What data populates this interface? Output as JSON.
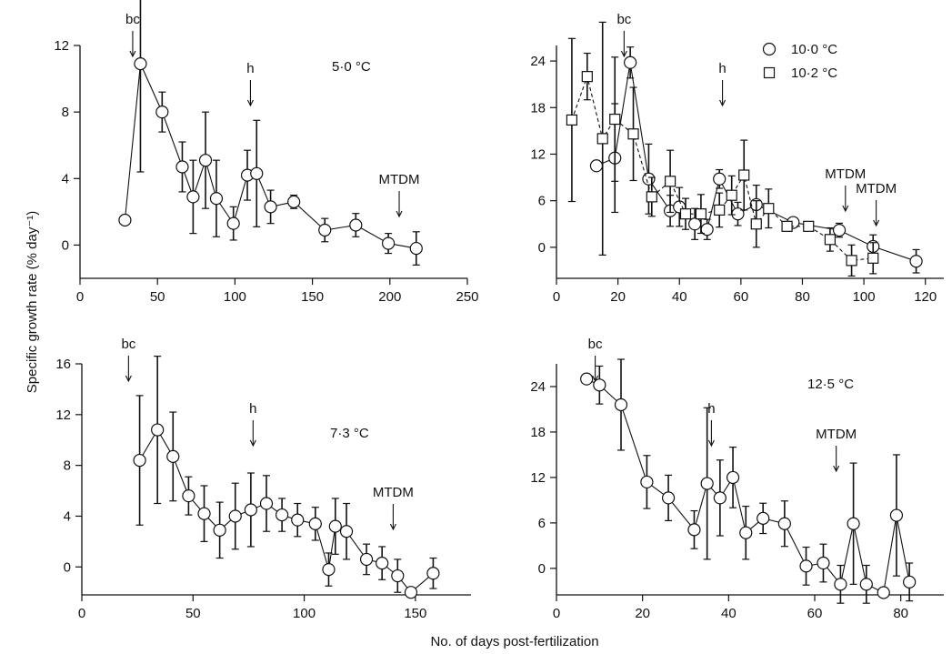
{
  "figure": {
    "ylabel": "Specific growth rate (% day⁻¹)",
    "xlabel": "No. of days post-fertilization"
  },
  "chart_data": [
    {
      "type": "scatter",
      "panel": "top-left",
      "annotation": "5·0 °C",
      "xlim": [
        0,
        250
      ],
      "ylim": [
        -2,
        12
      ],
      "xticks": [
        0,
        50,
        100,
        150,
        200,
        250
      ],
      "yticks": [
        0,
        4,
        8,
        12
      ],
      "series": [
        {
          "marker": "circle",
          "line": "solid",
          "points": [
            {
              "x": 29,
              "y": 1.5,
              "err": 0
            },
            {
              "x": 39,
              "y": 10.9,
              "err": 6.5
            },
            {
              "x": 53,
              "y": 8.0,
              "err": 1.2
            },
            {
              "x": 66,
              "y": 4.7,
              "err": 1.5
            },
            {
              "x": 73,
              "y": 2.9,
              "err": 2.2
            },
            {
              "x": 81,
              "y": 5.1,
              "err": 2.9
            },
            {
              "x": 88,
              "y": 2.8,
              "err": 2.3
            },
            {
              "x": 99,
              "y": 1.3,
              "err": 1.0
            },
            {
              "x": 108,
              "y": 4.2,
              "err": 1.5
            },
            {
              "x": 114,
              "y": 4.3,
              "err": 3.2
            },
            {
              "x": 123,
              "y": 2.3,
              "err": 1.0
            },
            {
              "x": 138,
              "y": 2.6,
              "err": 0.4
            },
            {
              "x": 158,
              "y": 0.9,
              "err": 0.7
            },
            {
              "x": 178,
              "y": 1.2,
              "err": 0.7
            },
            {
              "x": 199,
              "y": 0.1,
              "err": 0.6
            },
            {
              "x": 217,
              "y": -0.2,
              "err": 1.0
            }
          ]
        }
      ],
      "markers": [
        {
          "label": "bc",
          "x": 34
        },
        {
          "label": "h",
          "x": 110
        },
        {
          "label": "MTDM",
          "x": 206
        }
      ]
    },
    {
      "type": "scatter",
      "panel": "top-right",
      "annotation": "",
      "xlim": [
        0,
        126
      ],
      "ylim": [
        -4,
        26
      ],
      "xticks": [
        0,
        20,
        40,
        60,
        80,
        100,
        120
      ],
      "yticks": [
        0,
        6,
        12,
        18,
        24
      ],
      "legend": "top-right",
      "series": [
        {
          "name": "10·0 °C",
          "marker": "circle",
          "line": "solid",
          "points": [
            {
              "x": 13,
              "y": 10.5,
              "err": 0
            },
            {
              "x": 19,
              "y": 11.5,
              "err": 7
            },
            {
              "x": 24,
              "y": 23.8,
              "err": 2
            },
            {
              "x": 30,
              "y": 8.8,
              "err": 4.5
            },
            {
              "x": 37,
              "y": 4.7,
              "err": 2
            },
            {
              "x": 40,
              "y": 5.2,
              "err": 2.5
            },
            {
              "x": 45,
              "y": 3.0,
              "err": 2
            },
            {
              "x": 49,
              "y": 2.3,
              "err": 1.3
            },
            {
              "x": 53,
              "y": 8.8,
              "err": 1.2
            },
            {
              "x": 59,
              "y": 4.3,
              "err": 1.5
            },
            {
              "x": 65,
              "y": 5.5,
              "err": 2.5
            },
            {
              "x": 77,
              "y": 3.2,
              "err": 0.4
            },
            {
              "x": 92,
              "y": 2.2,
              "err": 0.9
            },
            {
              "x": 103,
              "y": 0.1,
              "err": 1.5
            },
            {
              "x": 117,
              "y": -1.8,
              "err": 1.5
            }
          ]
        },
        {
          "name": "10·2 °C",
          "marker": "square",
          "line": "dashed",
          "points": [
            {
              "x": 5,
              "y": 16.4,
              "err": 10.5
            },
            {
              "x": 10,
              "y": 22.0,
              "err": 3
            },
            {
              "x": 15,
              "y": 14.0,
              "err": 15
            },
            {
              "x": 19,
              "y": 16.5,
              "err": 8
            },
            {
              "x": 25,
              "y": 14.6,
              "err": 6
            },
            {
              "x": 31,
              "y": 6.5,
              "err": 2.5
            },
            {
              "x": 37,
              "y": 8.5,
              "err": 4
            },
            {
              "x": 42,
              "y": 4.3,
              "err": 2
            },
            {
              "x": 47,
              "y": 4.3,
              "err": 2.5
            },
            {
              "x": 53,
              "y": 4.8,
              "err": 2.2
            },
            {
              "x": 57,
              "y": 6.7,
              "err": 2.5
            },
            {
              "x": 61,
              "y": 9.3,
              "err": 4.5
            },
            {
              "x": 65,
              "y": 3.0,
              "err": 3
            },
            {
              "x": 69,
              "y": 5.0,
              "err": 2.5
            },
            {
              "x": 75,
              "y": 2.7,
              "err": 0.3
            },
            {
              "x": 82,
              "y": 2.7,
              "err": 0.3
            },
            {
              "x": 89,
              "y": 1.0,
              "err": 1.5
            },
            {
              "x": 96,
              "y": -1.7,
              "err": 2
            },
            {
              "x": 103,
              "y": -1.4,
              "err": 2
            }
          ]
        }
      ],
      "markers": [
        {
          "label": "bc",
          "x": 22
        },
        {
          "label": "h",
          "x": 54
        },
        {
          "label": "MTDM",
          "x": 94
        },
        {
          "label": "MTDM",
          "x": 104
        }
      ]
    },
    {
      "type": "scatter",
      "panel": "bottom-left",
      "annotation": "7·3 °C",
      "xlim": [
        0,
        175
      ],
      "ylim": [
        -2.2,
        16
      ],
      "xticks": [
        0,
        50,
        100,
        150
      ],
      "yticks": [
        0,
        4,
        8,
        12,
        16
      ],
      "series": [
        {
          "marker": "circle",
          "line": "solid",
          "points": [
            {
              "x": 26,
              "y": 8.4,
              "err": 5.1
            },
            {
              "x": 34,
              "y": 10.8,
              "err": 5.8
            },
            {
              "x": 41,
              "y": 8.7,
              "err": 3.5
            },
            {
              "x": 48,
              "y": 5.6,
              "err": 1.5
            },
            {
              "x": 55,
              "y": 4.2,
              "err": 2.2
            },
            {
              "x": 62,
              "y": 2.9,
              "err": 2.2
            },
            {
              "x": 69,
              "y": 4.0,
              "err": 2.6
            },
            {
              "x": 76,
              "y": 4.5,
              "err": 2.9
            },
            {
              "x": 83,
              "y": 5.0,
              "err": 2.2
            },
            {
              "x": 90,
              "y": 4.1,
              "err": 1.3
            },
            {
              "x": 97,
              "y": 3.7,
              "err": 1.3
            },
            {
              "x": 105,
              "y": 3.4,
              "err": 1.3
            },
            {
              "x": 111,
              "y": -0.2,
              "err": 1.3
            },
            {
              "x": 114,
              "y": 3.2,
              "err": 2.2
            },
            {
              "x": 119,
              "y": 2.8,
              "err": 2.2
            },
            {
              "x": 128,
              "y": 0.6,
              "err": 1.2
            },
            {
              "x": 135,
              "y": 0.3,
              "err": 1.3
            },
            {
              "x": 142,
              "y": -0.7,
              "err": 1.3
            },
            {
              "x": 148,
              "y": -2.0,
              "err": 0
            },
            {
              "x": 158,
              "y": -0.5,
              "err": 1.2
            }
          ]
        }
      ],
      "markers": [
        {
          "label": "bc",
          "x": 21
        },
        {
          "label": "h",
          "x": 77
        },
        {
          "label": "MTDM",
          "x": 140
        }
      ]
    },
    {
      "type": "scatter",
      "panel": "bottom-right",
      "annotation": "12·5 °C",
      "xlim": [
        0,
        90
      ],
      "ylim": [
        -3.5,
        27
      ],
      "xticks": [
        0,
        20,
        40,
        60,
        80
      ],
      "yticks": [
        0,
        6,
        12,
        18,
        24
      ],
      "series": [
        {
          "marker": "circle",
          "line": "solid",
          "points": [
            {
              "x": 7,
              "y": 25.0,
              "err": 0
            },
            {
              "x": 10,
              "y": 24.2,
              "err": 2.5
            },
            {
              "x": 15,
              "y": 21.6,
              "err": 6
            },
            {
              "x": 21,
              "y": 11.4,
              "err": 3.5
            },
            {
              "x": 26,
              "y": 9.3,
              "err": 3
            },
            {
              "x": 32,
              "y": 5.1,
              "err": 2.5
            },
            {
              "x": 35,
              "y": 11.2,
              "err": 10
            },
            {
              "x": 38,
              "y": 9.3,
              "err": 5
            },
            {
              "x": 41,
              "y": 12.0,
              "err": 4
            },
            {
              "x": 44,
              "y": 4.7,
              "err": 3.5
            },
            {
              "x": 48,
              "y": 6.6,
              "err": 2
            },
            {
              "x": 53,
              "y": 5.9,
              "err": 3
            },
            {
              "x": 58,
              "y": 0.3,
              "err": 2.5
            },
            {
              "x": 62,
              "y": 0.7,
              "err": 2.5
            },
            {
              "x": 66,
              "y": -2.1,
              "err": 2.5
            },
            {
              "x": 69,
              "y": 5.9,
              "err": 8
            },
            {
              "x": 72,
              "y": -2.1,
              "err": 2.5
            },
            {
              "x": 76,
              "y": -3.2,
              "err": 0
            },
            {
              "x": 79,
              "y": 7.0,
              "err": 8
            },
            {
              "x": 82,
              "y": -1.8,
              "err": 2.5
            }
          ]
        }
      ],
      "markers": [
        {
          "label": "bc",
          "x": 9
        },
        {
          "label": "h",
          "x": 36
        },
        {
          "label": "MTDM",
          "x": 65
        }
      ]
    }
  ]
}
